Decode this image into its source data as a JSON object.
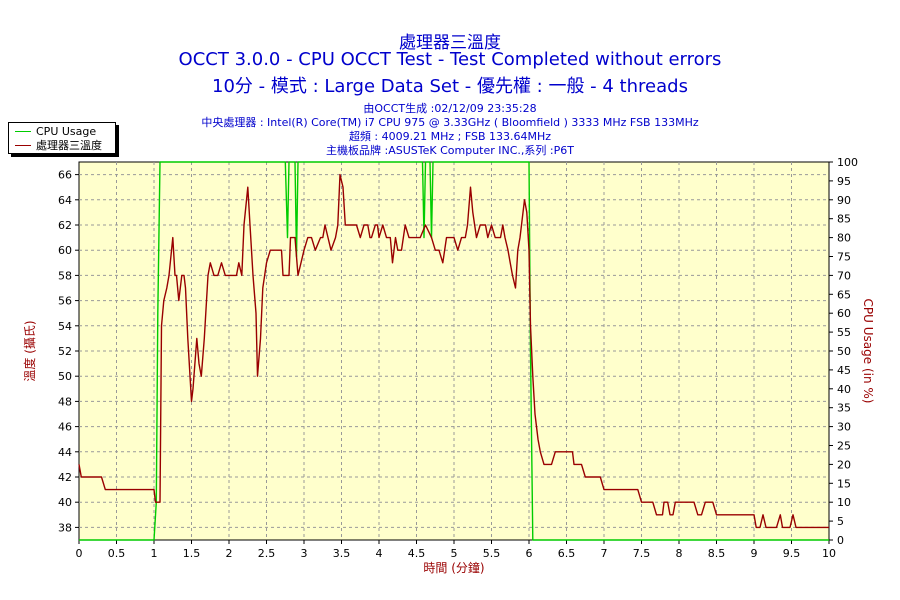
{
  "titles": {
    "line1": "處理器三溫度",
    "line2": "OCCT 3.0.0 - CPU OCCT Test - Test Completed without errors",
    "line3": "10分 - 模式 : Large Data Set - 優先權 : 一般 - 4 threads"
  },
  "info": {
    "generated": "由OCCT生成 :02/12/09 23:35:28",
    "cpu": "中央處理器 : Intel(R) Core(TM) i7 CPU 975 @ 3.33GHz ( Bloomfield ) 3333 MHz FSB 133MHz",
    "overclock": "超頻 : 4009.21 MHz ; FSB 133.64MHz",
    "board": "主機板品牌 :ASUSTeK Computer INC.,系列 :P6T"
  },
  "colors": {
    "background": "#ffffcc",
    "cpu_usage": "#00cc00",
    "temperature": "#990000",
    "title": "#0000cc",
    "grid": "#999999"
  },
  "chart_data": {
    "type": "line",
    "xlabel": "時間 (分鐘)",
    "ylabel_left": "溫度 (攝氏)",
    "ylabel_right": "CPU Usage (in %)",
    "xlim": [
      0,
      10
    ],
    "ylim_left": [
      37,
      67
    ],
    "ylim_right": [
      0,
      100
    ],
    "x_ticks": [
      "0",
      "0.5",
      "1",
      "1.5",
      "2",
      "2.5",
      "3",
      "3.5",
      "4",
      "4.5",
      "5",
      "5.5",
      "6",
      "6.5",
      "7",
      "7.5",
      "8",
      "8.5",
      "9",
      "9.5",
      "10"
    ],
    "y_left_ticks": [
      "38",
      "40",
      "42",
      "44",
      "46",
      "48",
      "50",
      "52",
      "54",
      "56",
      "58",
      "60",
      "62",
      "64",
      "66"
    ],
    "y_right_ticks": [
      "0",
      "5",
      "10",
      "15",
      "20",
      "25",
      "30",
      "35",
      "40",
      "45",
      "50",
      "55",
      "60",
      "65",
      "70",
      "75",
      "80",
      "85",
      "90",
      "95",
      "100"
    ],
    "grid": true,
    "legend_position": "top-left",
    "series": [
      {
        "name": "CPU Usage",
        "axis": "right",
        "points": [
          [
            0,
            0
          ],
          [
            1.0,
            0
          ],
          [
            1.03,
            10
          ],
          [
            1.05,
            60
          ],
          [
            1.08,
            100
          ],
          [
            2.75,
            100
          ],
          [
            2.78,
            80
          ],
          [
            2.8,
            100
          ],
          [
            2.88,
            100
          ],
          [
            2.9,
            75
          ],
          [
            2.92,
            100
          ],
          [
            4.58,
            100
          ],
          [
            4.6,
            80
          ],
          [
            4.62,
            100
          ],
          [
            4.68,
            100
          ],
          [
            4.7,
            80
          ],
          [
            4.72,
            100
          ],
          [
            6.0,
            100
          ],
          [
            6.02,
            50
          ],
          [
            6.05,
            0
          ],
          [
            10,
            0
          ]
        ]
      },
      {
        "name": "處理器三溫度",
        "axis": "left",
        "points": [
          [
            0,
            43
          ],
          [
            0.03,
            42
          ],
          [
            0.3,
            42
          ],
          [
            0.35,
            41
          ],
          [
            1.0,
            41
          ],
          [
            1.02,
            40
          ],
          [
            1.08,
            40
          ],
          [
            1.1,
            54
          ],
          [
            1.13,
            56
          ],
          [
            1.17,
            57
          ],
          [
            1.2,
            58
          ],
          [
            1.25,
            61
          ],
          [
            1.28,
            58
          ],
          [
            1.3,
            58
          ],
          [
            1.33,
            56
          ],
          [
            1.37,
            58
          ],
          [
            1.4,
            58
          ],
          [
            1.42,
            57
          ],
          [
            1.45,
            53
          ],
          [
            1.5,
            48
          ],
          [
            1.52,
            49
          ],
          [
            1.57,
            53
          ],
          [
            1.6,
            51
          ],
          [
            1.63,
            50
          ],
          [
            1.67,
            53
          ],
          [
            1.72,
            58
          ],
          [
            1.75,
            59
          ],
          [
            1.8,
            58
          ],
          [
            1.85,
            58
          ],
          [
            1.9,
            59
          ],
          [
            1.95,
            58
          ],
          [
            2.1,
            58
          ],
          [
            2.13,
            59
          ],
          [
            2.17,
            58
          ],
          [
            2.2,
            62
          ],
          [
            2.25,
            65
          ],
          [
            2.28,
            62
          ],
          [
            2.32,
            58
          ],
          [
            2.36,
            55
          ],
          [
            2.38,
            50
          ],
          [
            2.42,
            53
          ],
          [
            2.45,
            57
          ],
          [
            2.5,
            59
          ],
          [
            2.55,
            60
          ],
          [
            2.7,
            60
          ],
          [
            2.72,
            58
          ],
          [
            2.8,
            58
          ],
          [
            2.82,
            61
          ],
          [
            2.88,
            61
          ],
          [
            2.92,
            58
          ],
          [
            3.0,
            60
          ],
          [
            3.05,
            61
          ],
          [
            3.1,
            61
          ],
          [
            3.15,
            60
          ],
          [
            3.22,
            61
          ],
          [
            3.25,
            61
          ],
          [
            3.28,
            62
          ],
          [
            3.32,
            61
          ],
          [
            3.36,
            60
          ],
          [
            3.42,
            61
          ],
          [
            3.45,
            62
          ],
          [
            3.48,
            66
          ],
          [
            3.52,
            65
          ],
          [
            3.55,
            62
          ],
          [
            3.6,
            62
          ],
          [
            3.68,
            62
          ],
          [
            3.7,
            62
          ],
          [
            3.75,
            61
          ],
          [
            3.8,
            62
          ],
          [
            3.85,
            62
          ],
          [
            3.88,
            61
          ],
          [
            3.9,
            61
          ],
          [
            3.95,
            62
          ],
          [
            3.98,
            62
          ],
          [
            4.0,
            61
          ],
          [
            4.05,
            62
          ],
          [
            4.1,
            61
          ],
          [
            4.15,
            61
          ],
          [
            4.18,
            59
          ],
          [
            4.2,
            60
          ],
          [
            4.22,
            61
          ],
          [
            4.25,
            60
          ],
          [
            4.3,
            60
          ],
          [
            4.35,
            62
          ],
          [
            4.4,
            61
          ],
          [
            4.45,
            61
          ],
          [
            4.5,
            61
          ],
          [
            4.55,
            61
          ],
          [
            4.62,
            62
          ],
          [
            4.7,
            61
          ],
          [
            4.75,
            60
          ],
          [
            4.8,
            60
          ],
          [
            4.85,
            59
          ],
          [
            4.9,
            61
          ],
          [
            4.95,
            61
          ],
          [
            5.0,
            61
          ],
          [
            5.05,
            60
          ],
          [
            5.1,
            61
          ],
          [
            5.15,
            61
          ],
          [
            5.18,
            62
          ],
          [
            5.22,
            65
          ],
          [
            5.25,
            63
          ],
          [
            5.3,
            61
          ],
          [
            5.35,
            62
          ],
          [
            5.42,
            62
          ],
          [
            5.45,
            61
          ],
          [
            5.5,
            62
          ],
          [
            5.55,
            61
          ],
          [
            5.58,
            61
          ],
          [
            5.62,
            61
          ],
          [
            5.65,
            62
          ],
          [
            5.68,
            61
          ],
          [
            5.72,
            60
          ],
          [
            5.75,
            59
          ],
          [
            5.78,
            58
          ],
          [
            5.82,
            57
          ],
          [
            5.85,
            60
          ],
          [
            5.88,
            61
          ],
          [
            5.9,
            62
          ],
          [
            5.94,
            64
          ],
          [
            5.97,
            63
          ],
          [
            6.0,
            60
          ],
          [
            6.02,
            54
          ],
          [
            6.05,
            50
          ],
          [
            6.08,
            47
          ],
          [
            6.12,
            45
          ],
          [
            6.15,
            44
          ],
          [
            6.2,
            43
          ],
          [
            6.3,
            43
          ],
          [
            6.35,
            44
          ],
          [
            6.4,
            44
          ],
          [
            6.58,
            44
          ],
          [
            6.6,
            43
          ],
          [
            6.7,
            43
          ],
          [
            6.75,
            42
          ],
          [
            6.95,
            42
          ],
          [
            7.0,
            41
          ],
          [
            7.45,
            41
          ],
          [
            7.5,
            40
          ],
          [
            7.65,
            40
          ],
          [
            7.7,
            39
          ],
          [
            7.78,
            39
          ],
          [
            7.8,
            40
          ],
          [
            7.85,
            40
          ],
          [
            7.88,
            39
          ],
          [
            7.92,
            39
          ],
          [
            7.95,
            40
          ],
          [
            8.2,
            40
          ],
          [
            8.25,
            39
          ],
          [
            8.3,
            39
          ],
          [
            8.35,
            40
          ],
          [
            8.45,
            40
          ],
          [
            8.5,
            39
          ],
          [
            9.0,
            39
          ],
          [
            9.03,
            38
          ],
          [
            9.08,
            38
          ],
          [
            9.12,
            39
          ],
          [
            9.16,
            38
          ],
          [
            9.3,
            38
          ],
          [
            9.35,
            39
          ],
          [
            9.38,
            38
          ],
          [
            9.48,
            38
          ],
          [
            9.52,
            39
          ],
          [
            9.56,
            38
          ],
          [
            9.65,
            38
          ],
          [
            10,
            38
          ]
        ]
      }
    ]
  }
}
